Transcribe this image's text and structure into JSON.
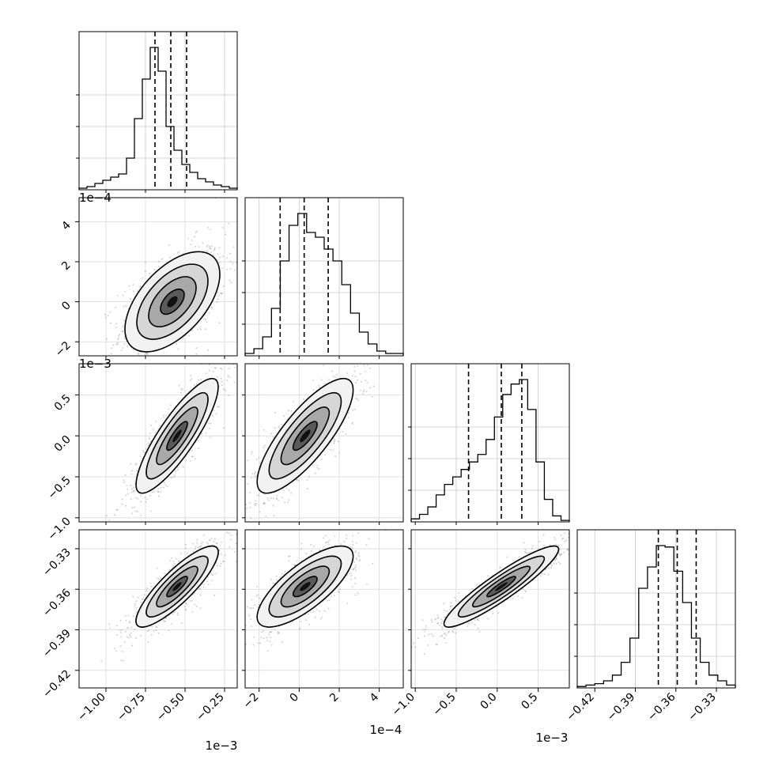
{
  "chart_data": {
    "type": "corner",
    "description_free": true,
    "offsets": [
      "1e-3",
      "1e-4",
      "1e-3",
      ""
    ],
    "variables": [
      {
        "range": [
          -1.17,
          -0.17
        ],
        "ticks": [
          -1.0,
          -0.75,
          -0.5,
          -0.25
        ],
        "tick_labels": [
          "−1.00",
          "−0.75",
          "−0.50",
          "−0.25"
        ],
        "offset_label": "1e−3",
        "quantiles": [
          -0.69,
          -0.59,
          -0.49
        ],
        "hist": [
          1,
          2,
          4,
          6,
          8,
          10,
          20,
          45,
          70,
          90,
          75,
          40,
          25,
          16,
          11,
          7,
          5,
          3,
          2,
          1
        ]
      },
      {
        "range": [
          -2.7,
          5.2
        ],
        "ticks": [
          -2,
          0,
          2,
          4
        ],
        "tick_labels": [
          "−2",
          "0",
          "2",
          "4"
        ],
        "offset_label": "1e−4",
        "quantiles": [
          -0.95,
          0.25,
          1.45
        ],
        "hist": [
          1,
          3,
          8,
          20,
          40,
          55,
          60,
          52,
          50,
          45,
          40,
          30,
          18,
          10,
          5,
          2,
          1,
          1
        ]
      },
      {
        "range": [
          -1.05,
          0.88
        ],
        "ticks": [
          -1.0,
          -0.5,
          0.0,
          0.5
        ],
        "tick_labels": [
          "−1.0",
          "−0.5",
          "0.0",
          "0.5"
        ],
        "offset_label": "1e−3",
        "quantiles": [
          -0.35,
          0.05,
          0.3
        ],
        "hist": [
          2,
          5,
          10,
          18,
          25,
          30,
          35,
          40,
          45,
          55,
          70,
          85,
          92,
          95,
          75,
          40,
          15,
          4,
          1
        ]
      },
      {
        "range": [
          -0.433,
          -0.316
        ],
        "ticks": [
          -0.42,
          -0.39,
          -0.36,
          -0.33
        ],
        "tick_labels": [
          "−0.42",
          "−0.39",
          "−0.36",
          "−0.33"
        ],
        "offset_label": "",
        "quantiles": [
          -0.373,
          -0.359,
          -0.345
        ],
        "hist": [
          1,
          2,
          3,
          5,
          9,
          18,
          35,
          70,
          85,
          100,
          99,
          82,
          60,
          35,
          18,
          9,
          5,
          2
        ]
      }
    ],
    "pairs": [
      {
        "row": 1,
        "col": 0,
        "correlation": 0.55,
        "mean": [
          -0.58,
          0.0
        ],
        "sd": [
          0.15,
          1.25
        ]
      },
      {
        "row": 2,
        "col": 0,
        "correlation": 0.85,
        "mean": [
          -0.55,
          0.0
        ],
        "sd": [
          0.13,
          0.35
        ]
      },
      {
        "row": 2,
        "col": 1,
        "correlation": 0.8,
        "mean": [
          0.3,
          0.0
        ],
        "sd": [
          1.2,
          0.35
        ]
      },
      {
        "row": 3,
        "col": 0,
        "correlation": 0.85,
        "mean": [
          -0.55,
          -0.358
        ],
        "sd": [
          0.13,
          0.015
        ]
      },
      {
        "row": 3,
        "col": 1,
        "correlation": 0.75,
        "mean": [
          0.3,
          -0.358
        ],
        "sd": [
          1.2,
          0.015
        ]
      },
      {
        "row": 3,
        "col": 2,
        "correlation": 0.92,
        "mean": [
          0.05,
          -0.358
        ],
        "sd": [
          0.35,
          0.015
        ]
      }
    ],
    "grid": true,
    "colors": {
      "points": "#7a7a7a",
      "contour": "#000000",
      "hist": "#000000",
      "quantile": "#000000"
    }
  }
}
